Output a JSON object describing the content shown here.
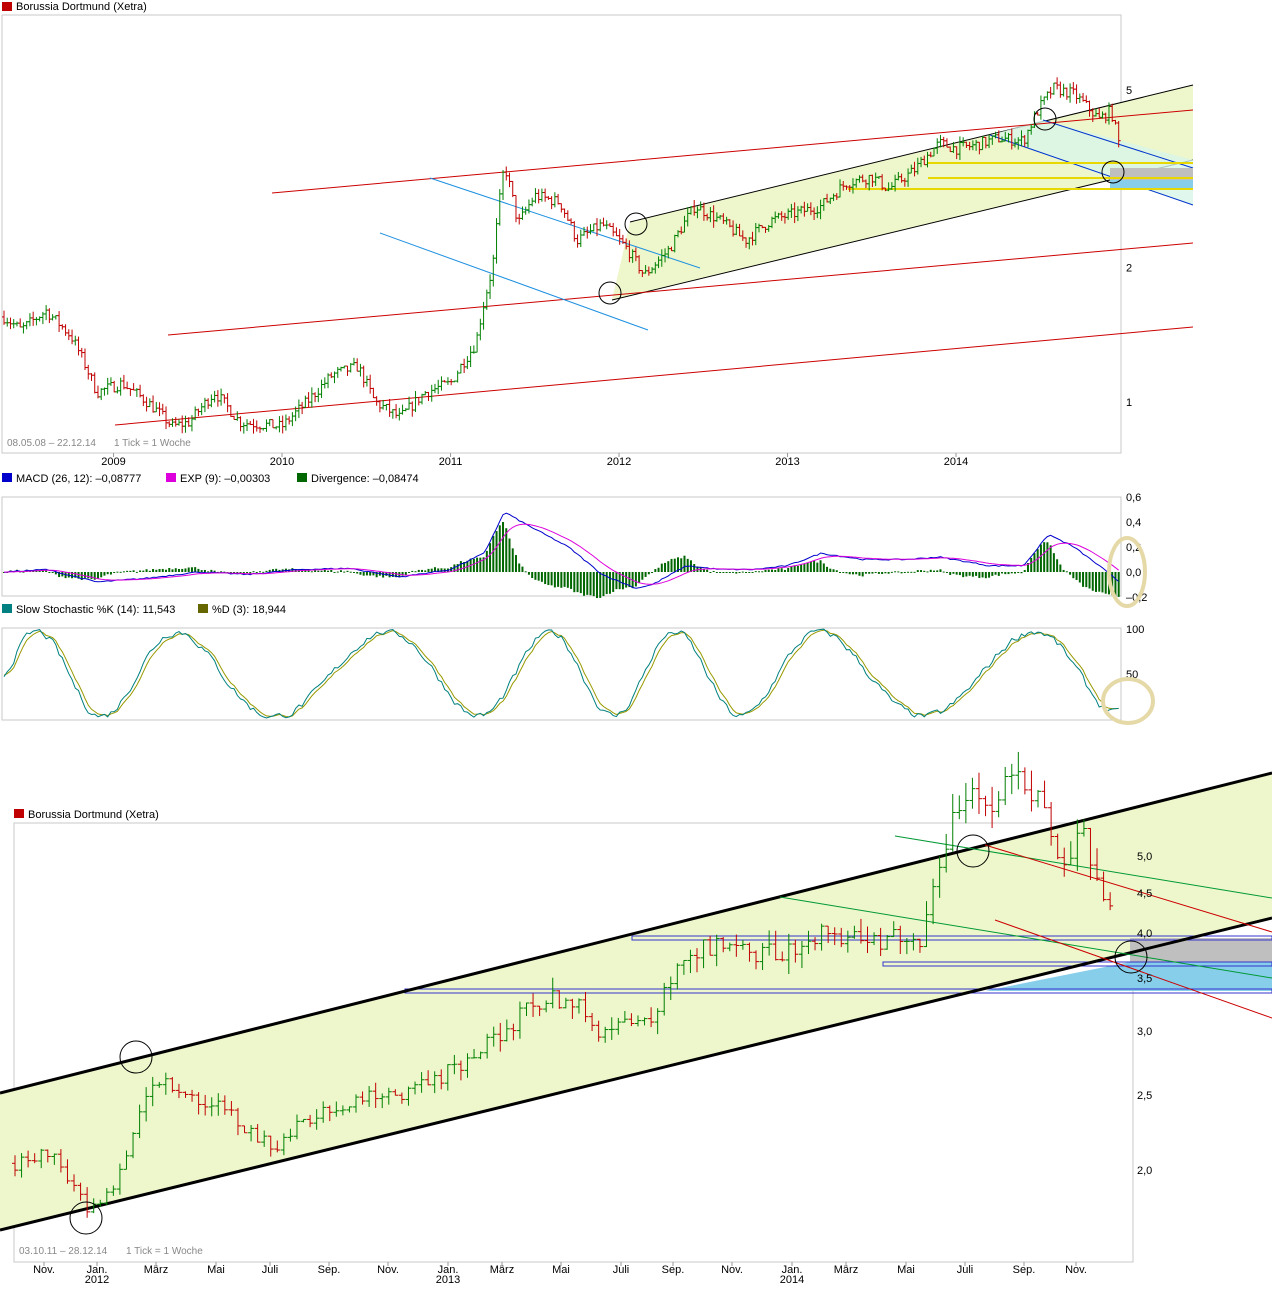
{
  "colors": {
    "up": "#008000",
    "down": "#c00000",
    "channel_fill": "#eef7cc",
    "resistance_red": "#cc0000",
    "down_channel_blue": "#1e90e0",
    "trend_black": "#000000",
    "macd": "#0000cc",
    "exp": "#dd00dd",
    "divergence": "#006600",
    "stoch_k": "#008080",
    "stoch_d": "#999900",
    "highlight": "#e6d9a8",
    "zone_gray": "#bfbfbf",
    "zone_blue": "#87ceeb",
    "zone_yellow": "#e8d800"
  },
  "top_chart": {
    "legend": "Borussia Dortmund (Xetra)",
    "legend_color": "#c00000",
    "footer_range": "08.05.08 – 22.12.14",
    "footer_tick": "1 Tick = 1 Woche"
  },
  "macd_panel": {
    "legend_macd": "MACD (26, 12): –0,08777",
    "legend_exp": "EXP (9): –0,00303",
    "legend_div": "Divergence: –0,08474",
    "ticks": [
      "0,6",
      "0,4",
      "0,2",
      "0,0",
      "–0,2"
    ]
  },
  "stoch_panel": {
    "legend_k": "Slow Stochastic %K (14): 11,543",
    "legend_d": "%D (3): 18,944",
    "ticks": [
      "100",
      "50"
    ]
  },
  "bottom_chart": {
    "legend": "Borussia Dortmund (Xetra)",
    "legend_color": "#c00000",
    "footer_range": "03.10.11 – 28.12.14",
    "footer_tick": "1 Tick = 1 Woche"
  },
  "chart_data": [
    {
      "type": "candlestick",
      "title": "Borussia Dortmund (Xetra)",
      "x_labels": [
        "2009",
        "2010",
        "2011",
        "2012",
        "2013",
        "2014"
      ],
      "y_scale": "log",
      "y_ticks": [
        "1",
        "2",
        "5"
      ],
      "ylim": [
        0.8,
        7.0
      ],
      "anchors": [
        [
          2008.35,
          1.55
        ],
        [
          2008.45,
          1.45
        ],
        [
          2008.6,
          1.6
        ],
        [
          2008.75,
          1.4
        ],
        [
          2008.9,
          1.05
        ],
        [
          2009.05,
          1.1
        ],
        [
          2009.2,
          1.0
        ],
        [
          2009.35,
          0.88
        ],
        [
          2009.45,
          0.9
        ],
        [
          2009.6,
          1.05
        ],
        [
          2009.75,
          0.9
        ],
        [
          2010.0,
          0.88
        ],
        [
          2010.15,
          1.0
        ],
        [
          2010.3,
          1.15
        ],
        [
          2010.45,
          1.2
        ],
        [
          2010.55,
          1.0
        ],
        [
          2010.7,
          0.92
        ],
        [
          2010.85,
          1.05
        ],
        [
          2011.0,
          1.1
        ],
        [
          2011.15,
          1.35
        ],
        [
          2011.25,
          2.0
        ],
        [
          2011.32,
          3.4
        ],
        [
          2011.4,
          2.5
        ],
        [
          2011.5,
          2.9
        ],
        [
          2011.65,
          2.8
        ],
        [
          2011.75,
          2.3
        ],
        [
          2011.9,
          2.5
        ],
        [
          2012.05,
          2.2
        ],
        [
          2012.15,
          1.92
        ],
        [
          2012.3,
          2.2
        ],
        [
          2012.45,
          2.75
        ],
        [
          2012.6,
          2.55
        ],
        [
          2012.75,
          2.3
        ],
        [
          2012.9,
          2.55
        ],
        [
          2013.05,
          2.65
        ],
        [
          2013.2,
          2.75
        ],
        [
          2013.35,
          3.1
        ],
        [
          2013.5,
          3.2
        ],
        [
          2013.6,
          3.0
        ],
        [
          2013.75,
          3.3
        ],
        [
          2013.9,
          3.8
        ],
        [
          2014.0,
          3.7
        ],
        [
          2014.1,
          3.75
        ],
        [
          2014.25,
          3.9
        ],
        [
          2014.4,
          3.85
        ],
        [
          2014.5,
          4.6
        ],
        [
          2014.58,
          5.05
        ],
        [
          2014.7,
          4.9
        ],
        [
          2014.85,
          4.3
        ],
        [
          2014.92,
          4.5
        ],
        [
          2014.97,
          3.75
        ]
      ],
      "annotations": [
        "Up-trend channel",
        "Falling channel",
        "Resistance and support lines",
        "Support zone",
        "Pivot markers at major highs and lows"
      ]
    },
    {
      "type": "line",
      "title": "MACD (26, 12)",
      "series": [
        {
          "name": "MACD (26, 12)",
          "last": -0.08777
        },
        {
          "name": "EXP (9)",
          "last": -0.00303
        },
        {
          "name": "Divergence",
          "last": -0.08474
        }
      ],
      "ylim": [
        -0.2,
        0.6
      ],
      "anchors": [
        [
          2008.35,
          0.0
        ],
        [
          2008.6,
          0.02
        ],
        [
          2008.9,
          -0.08
        ],
        [
          2009.2,
          -0.05
        ],
        [
          2009.5,
          0.0
        ],
        [
          2009.8,
          -0.02
        ],
        [
          2010.1,
          0.02
        ],
        [
          2010.4,
          0.03
        ],
        [
          2010.7,
          -0.04
        ],
        [
          2011.0,
          0.02
        ],
        [
          2011.2,
          0.15
        ],
        [
          2011.32,
          0.48
        ],
        [
          2011.45,
          0.38
        ],
        [
          2011.7,
          0.2
        ],
        [
          2011.9,
          -0.02
        ],
        [
          2012.1,
          -0.13
        ],
        [
          2012.2,
          -0.1
        ],
        [
          2012.4,
          0.05
        ],
        [
          2012.6,
          0.02
        ],
        [
          2012.8,
          0.02
        ],
        [
          2013.0,
          0.05
        ],
        [
          2013.2,
          0.15
        ],
        [
          2013.45,
          0.1
        ],
        [
          2013.7,
          0.1
        ],
        [
          2013.9,
          0.12
        ],
        [
          2014.2,
          0.05
        ],
        [
          2014.4,
          0.05
        ],
        [
          2014.55,
          0.3
        ],
        [
          2014.7,
          0.2
        ],
        [
          2014.85,
          0.05
        ],
        [
          2014.97,
          -0.08
        ]
      ]
    },
    {
      "type": "line",
      "title": "Slow Stochastic %K (14)",
      "series": [
        {
          "name": "Slow Stochastic %K (14)",
          "last": 11.543
        },
        {
          "name": "%D (3)",
          "last": 18.944
        }
      ],
      "ylim": [
        0,
        100
      ],
      "y_ticks": [
        "100",
        "50"
      ]
    },
    {
      "type": "candlestick",
      "title": "Borussia Dortmund (Xetra)",
      "x_labels": [
        "Nov.",
        "Jan.",
        "März",
        "Mai",
        "Juli",
        "Sep.",
        "Nov.",
        "Jan.",
        "März",
        "Mai",
        "Juli",
        "Sep.",
        "Nov.",
        "Jan.",
        "März",
        "Mai",
        "Juli",
        "Sep.",
        "Nov."
      ],
      "year_labels": [
        "2012",
        "2013",
        "2014"
      ],
      "y_ticks": [
        "2,0",
        "2,5",
        "3,0",
        "3,5",
        "4,0",
        "4,5",
        "5,0"
      ],
      "ylim": [
        1.5,
        5.4
      ],
      "anchors": [
        [
          2011.76,
          2.05
        ],
        [
          2011.85,
          2.15
        ],
        [
          2011.92,
          1.95
        ],
        [
          2011.97,
          1.7
        ],
        [
          2012.05,
          1.85
        ],
        [
          2012.1,
          2.2
        ],
        [
          2012.16,
          2.7
        ],
        [
          2012.25,
          2.6
        ],
        [
          2012.35,
          2.5
        ],
        [
          2012.45,
          2.3
        ],
        [
          2012.52,
          2.15
        ],
        [
          2012.6,
          2.35
        ],
        [
          2012.7,
          2.45
        ],
        [
          2012.8,
          2.6
        ],
        [
          2012.9,
          2.55
        ],
        [
          2013.0,
          2.7
        ],
        [
          2013.07,
          2.75
        ],
        [
          2013.15,
          2.95
        ],
        [
          2013.3,
          3.25
        ],
        [
          2013.4,
          3.3
        ],
        [
          2013.47,
          3.0
        ],
        [
          2013.55,
          3.1
        ],
        [
          2013.62,
          3.1
        ],
        [
          2013.7,
          3.5
        ],
        [
          2013.82,
          3.7
        ],
        [
          2013.9,
          3.65
        ],
        [
          2013.97,
          3.6
        ],
        [
          2014.05,
          3.65
        ],
        [
          2014.15,
          3.8
        ],
        [
          2014.25,
          3.75
        ],
        [
          2014.35,
          3.7
        ],
        [
          2014.42,
          3.75
        ],
        [
          2014.5,
          4.6
        ],
        [
          2014.56,
          4.9
        ],
        [
          2014.62,
          4.75
        ],
        [
          2014.7,
          4.95
        ],
        [
          2014.76,
          4.8
        ],
        [
          2014.82,
          4.3
        ],
        [
          2014.9,
          4.45
        ],
        [
          2014.95,
          4.1
        ],
        [
          2014.99,
          3.75
        ]
      ],
      "annotations": [
        "Up-trend channel",
        "Resistance and support lines",
        "Support zone",
        "Pivot markers at major highs and lows"
      ]
    }
  ]
}
